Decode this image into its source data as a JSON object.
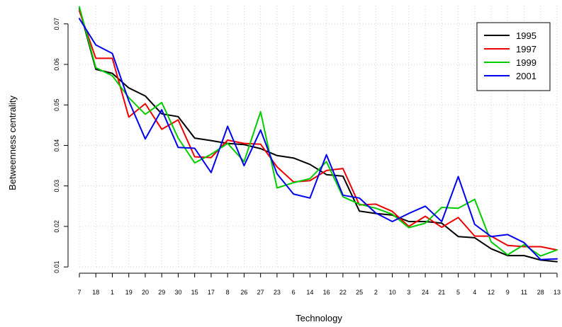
{
  "chart_data": {
    "type": "line",
    "title": "",
    "xlabel": "Technology",
    "ylabel": "Betweenness centrality",
    "categories": [
      "7",
      "18",
      "1",
      "19",
      "20",
      "29",
      "30",
      "15",
      "17",
      "8",
      "26",
      "27",
      "23",
      "6",
      "14",
      "16",
      "22",
      "25",
      "2",
      "10",
      "3",
      "24",
      "21",
      "5",
      "4",
      "12",
      "9",
      "11",
      "28",
      "13"
    ],
    "yticks": [
      0.01,
      0.02,
      0.03,
      0.04,
      0.05,
      0.06,
      0.07
    ],
    "ytick_labels": [
      "0.01",
      "0.02",
      "0.03",
      "0.04",
      "0.05",
      "0.06",
      "0.07"
    ],
    "ylim": [
      0.0095,
      0.0745
    ],
    "grid": true,
    "legend_position": "top-right",
    "series": [
      {
        "name": "1995",
        "color": "#000000",
        "values": [
          0.0738,
          0.0588,
          0.0578,
          0.0542,
          0.0522,
          0.0478,
          0.0471,
          0.0418,
          0.0412,
          0.0405,
          0.0402,
          0.0392,
          0.0375,
          0.0369,
          0.0353,
          0.0328,
          0.0324,
          0.0238,
          0.0232,
          0.0228,
          0.0212,
          0.0212,
          0.0208,
          0.0175,
          0.0172,
          0.0145,
          0.0128,
          0.0128,
          0.0117,
          0.0113
        ]
      },
      {
        "name": "1997",
        "color": "#ee0000",
        "values": [
          0.0732,
          0.0615,
          0.0615,
          0.047,
          0.0503,
          0.044,
          0.0463,
          0.0372,
          0.037,
          0.0413,
          0.0405,
          0.0403,
          0.0347,
          0.031,
          0.0313,
          0.0338,
          0.0343,
          0.0253,
          0.0255,
          0.0237,
          0.02,
          0.0225,
          0.0198,
          0.0222,
          0.0176,
          0.0176,
          0.0153,
          0.015,
          0.015,
          0.0142
        ]
      },
      {
        "name": "1999",
        "color": "#00cc00",
        "values": [
          0.0742,
          0.0592,
          0.0572,
          0.0518,
          0.0477,
          0.0506,
          0.0418,
          0.0357,
          0.0378,
          0.0405,
          0.036,
          0.0483,
          0.0295,
          0.0308,
          0.0318,
          0.036,
          0.0273,
          0.0255,
          0.0245,
          0.023,
          0.0197,
          0.0208,
          0.0247,
          0.0245,
          0.0267,
          0.0162,
          0.013,
          0.0155,
          0.0127,
          0.0142
        ]
      },
      {
        "name": "2001",
        "color": "#0000ee",
        "values": [
          0.0713,
          0.0648,
          0.0627,
          0.051,
          0.0416,
          0.0488,
          0.0395,
          0.0393,
          0.0333,
          0.0447,
          0.035,
          0.0438,
          0.033,
          0.028,
          0.027,
          0.0377,
          0.0277,
          0.027,
          0.0233,
          0.0212,
          0.0232,
          0.025,
          0.0212,
          0.0323,
          0.0205,
          0.0175,
          0.018,
          0.016,
          0.0118,
          0.012
        ]
      }
    ]
  }
}
